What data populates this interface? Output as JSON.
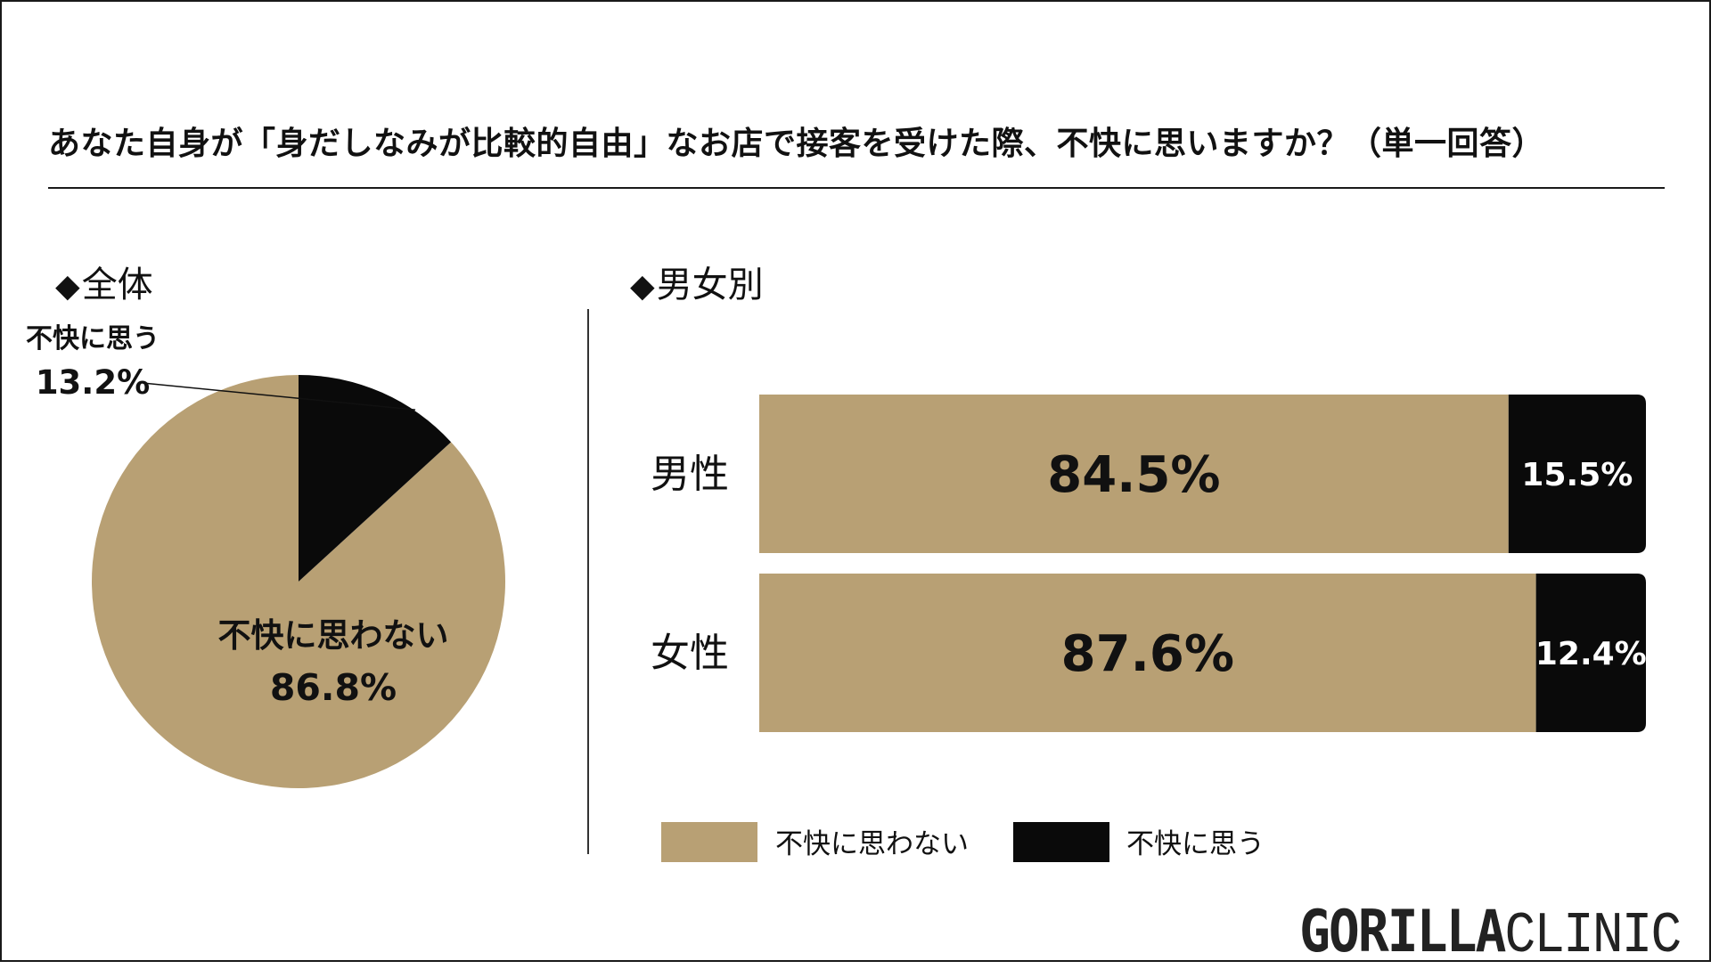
{
  "title": "あなた自身が「身だしなみが比較的自由」なお店で接客を受けた際、不快に思いますか？（単一回答）",
  "sections": {
    "overall": "全体",
    "by_gender": "男女別"
  },
  "colors": {
    "not_uncomfortable": "#b8a074",
    "uncomfortable": "#0a0a0a",
    "text": "#111111"
  },
  "brand": {
    "bold": "GORILLA",
    "light": "CLINIC"
  },
  "chart_data": [
    {
      "type": "pie",
      "title": "全体",
      "unit": "%",
      "slices": [
        {
          "label": "不快に思わない",
          "value": 86.8,
          "display": "86.8%",
          "color": "#b8a074"
        },
        {
          "label": "不快に思う",
          "value": 13.2,
          "display": "13.2%",
          "color": "#0a0a0a"
        }
      ]
    },
    {
      "type": "bar",
      "orientation": "horizontal",
      "stacked": true,
      "title": "男女別",
      "unit": "%",
      "xlim": [
        0,
        100
      ],
      "categories": [
        "男性",
        "女性"
      ],
      "series": [
        {
          "name": "不快に思わない",
          "color": "#b8a074",
          "values": [
            84.5,
            87.6
          ],
          "labels": [
            "84.5%",
            "87.6%"
          ]
        },
        {
          "name": "不快に思う",
          "color": "#0a0a0a",
          "values": [
            15.5,
            12.4
          ],
          "labels": [
            "15.5%",
            "12.4%"
          ]
        }
      ],
      "legend": [
        "不快に思わない",
        "不快に思う"
      ],
      "legend_position": "bottom"
    }
  ]
}
